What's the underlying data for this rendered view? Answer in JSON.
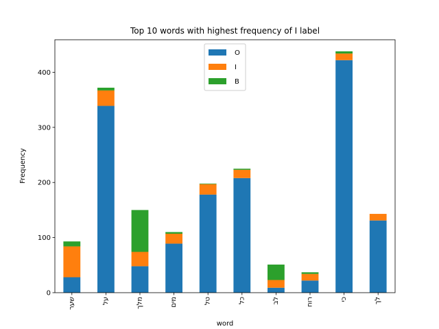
{
  "chart_data": {
    "type": "bar",
    "stacked": true,
    "title": "Top 10 words with highest frequency of I label",
    "xlabel": "word",
    "ylabel": "Frequency",
    "categories": [
      "שער",
      "על",
      "מלך",
      "מים",
      "טל",
      "כל",
      "לב",
      "רוח",
      "כי",
      "לך"
    ],
    "series": [
      {
        "name": "O",
        "color": "#1f77b4",
        "values": [
          28,
          339,
          48,
          89,
          178,
          208,
          9,
          22,
          422,
          131
        ]
      },
      {
        "name": "I",
        "color": "#ff7f0e",
        "values": [
          56,
          28,
          26,
          18,
          19,
          15,
          14,
          12,
          12,
          12
        ]
      },
      {
        "name": "B",
        "color": "#2ca02c",
        "values": [
          9,
          5,
          76,
          3,
          1,
          2,
          28,
          3,
          4,
          0
        ]
      }
    ],
    "ylim": [
      0,
      459
    ],
    "yticks": [
      0,
      100,
      200,
      300,
      400
    ],
    "grid": false,
    "legend_position": "top-center"
  }
}
